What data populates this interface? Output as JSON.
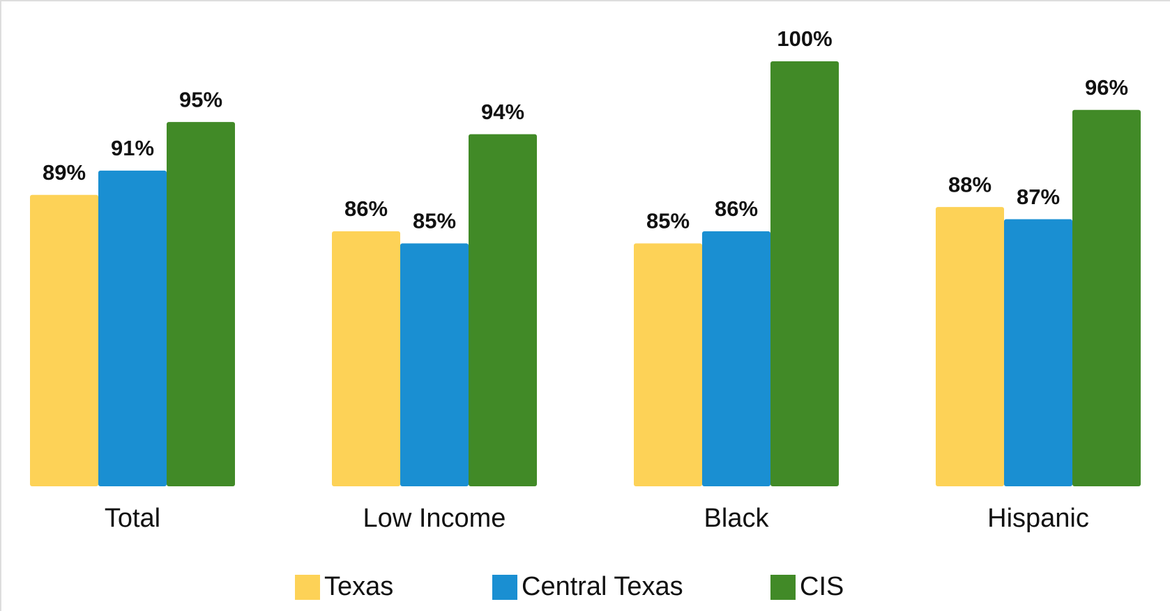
{
  "chart_data": {
    "type": "bar",
    "categories": [
      "Total",
      "Low Income",
      "Black",
      "Hispanic"
    ],
    "series": [
      {
        "name": "Texas",
        "color": "#fdd257",
        "values": [
          89,
          86,
          85,
          88
        ],
        "value_labels": [
          "89%",
          "86%",
          "85%",
          "88%"
        ]
      },
      {
        "name": "Central Texas",
        "color": "#1a8fd2",
        "values": [
          91,
          85,
          86,
          87
        ],
        "value_labels": [
          "91%",
          "85%",
          "86%",
          "87%"
        ]
      },
      {
        "name": "CIS",
        "color": "#418a27",
        "values": [
          95,
          94,
          100,
          96
        ],
        "value_labels": [
          "95%",
          "94%",
          "100%",
          "96%"
        ]
      }
    ],
    "ylim": [
      65,
      100
    ]
  }
}
